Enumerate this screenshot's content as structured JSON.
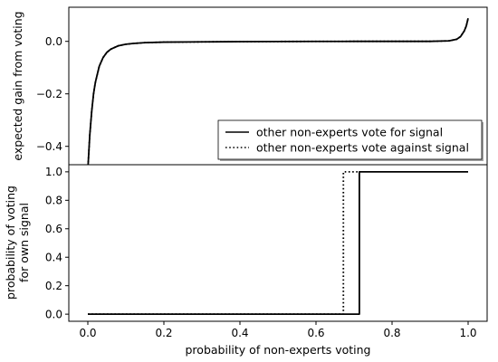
{
  "chart_data": [
    {
      "type": "line",
      "panel": "top",
      "xlabel": "",
      "ylabel": "expected gain from voting",
      "xlim": [
        -0.05,
        1.05
      ],
      "ylim": [
        -0.47,
        0.13
      ],
      "yticks": [
        0.0,
        -0.2,
        -0.4
      ],
      "ytick_labels": [
        "0.0",
        "−0.2",
        "−0.4"
      ],
      "legend": {
        "position": "lower-right",
        "entries": [
          {
            "label": "other non-experts vote for signal",
            "style": "solid"
          },
          {
            "label": "other non-experts vote against signal",
            "style": "dotted"
          }
        ]
      },
      "series": [
        {
          "name": "other non-experts vote for signal",
          "style": "solid",
          "color": "#000000",
          "x": [
            0.0,
            0.005,
            0.01,
            0.015,
            0.02,
            0.03,
            0.04,
            0.05,
            0.06,
            0.08,
            0.1,
            0.12,
            0.15,
            0.2,
            0.3,
            0.4,
            0.5,
            0.6,
            0.7,
            0.8,
            0.9,
            0.95,
            0.97,
            0.98,
            0.99,
            0.995,
            1.0
          ],
          "y": [
            -0.49,
            -0.36,
            -0.27,
            -0.2,
            -0.155,
            -0.095,
            -0.062,
            -0.042,
            -0.03,
            -0.017,
            -0.011,
            -0.008,
            -0.005,
            -0.003,
            -0.002,
            -0.001,
            -0.0005,
            -0.0002,
            0.0,
            0.0,
            0.0,
            0.002,
            0.008,
            0.018,
            0.04,
            0.058,
            0.088
          ]
        },
        {
          "name": "other non-experts vote against signal",
          "style": "dotted",
          "color": "#000000",
          "x": [
            0.0,
            0.005,
            0.01,
            0.015,
            0.02,
            0.03,
            0.04,
            0.05,
            0.06,
            0.08,
            0.1,
            0.12,
            0.15,
            0.2,
            0.3,
            0.4,
            0.5,
            0.6,
            0.7,
            0.8,
            0.9,
            0.95,
            0.97,
            0.98,
            0.99,
            0.995,
            1.0
          ],
          "y": [
            -0.49,
            -0.36,
            -0.27,
            -0.2,
            -0.155,
            -0.095,
            -0.062,
            -0.042,
            -0.03,
            -0.017,
            -0.011,
            -0.008,
            -0.005,
            -0.003,
            -0.002,
            -0.001,
            -0.0005,
            -0.0002,
            0.0,
            0.0,
            0.0,
            0.002,
            0.008,
            0.018,
            0.04,
            0.058,
            0.088
          ]
        }
      ]
    },
    {
      "type": "line",
      "panel": "bottom",
      "xlabel": "probability of non-experts voting",
      "ylabel_lines": [
        "probability of voting",
        "for own signal"
      ],
      "xlim": [
        -0.05,
        1.05
      ],
      "ylim": [
        -0.05,
        1.05
      ],
      "xticks": [
        0.0,
        0.2,
        0.4,
        0.6,
        0.8,
        1.0
      ],
      "xtick_labels": [
        "0.0",
        "0.2",
        "0.4",
        "0.6",
        "0.8",
        "1.0"
      ],
      "yticks": [
        0.0,
        0.2,
        0.4,
        0.6,
        0.8,
        1.0
      ],
      "ytick_labels": [
        "0.0",
        "0.2",
        "0.4",
        "0.6",
        "0.8",
        "1.0"
      ],
      "series": [
        {
          "name": "other non-experts vote for signal",
          "style": "solid",
          "color": "#000000",
          "x": [
            0.0,
            0.714,
            0.714,
            1.0
          ],
          "y": [
            0.0,
            0.0,
            1.0,
            1.0
          ]
        },
        {
          "name": "other non-experts vote against signal",
          "style": "dotted",
          "color": "#000000",
          "x": [
            0.0,
            0.672,
            0.672,
            0.714
          ],
          "y": [
            0.0,
            0.0,
            1.0,
            1.0
          ]
        }
      ]
    }
  ]
}
